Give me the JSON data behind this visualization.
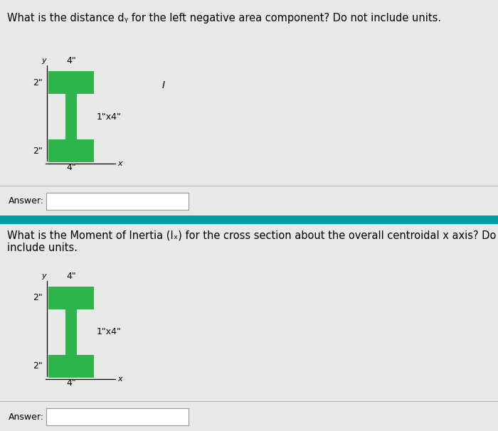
{
  "bg_top": "#e0e0e0",
  "bg_bot": "#e0e0e0",
  "divider_color": "#00a0a0",
  "section1": {
    "question": "What is the distance dᵧ for the left negative area component? Do not include units.",
    "green": "#2db54b",
    "white_bg": "#f0f0f0",
    "answer_label": "Answer:"
  },
  "section2": {
    "question_line1": "What is the Moment of Inertia (Iₓ) for the cross section about the overall centroidal x axis? Do not",
    "question_line2": "include units.",
    "green": "#2db54b",
    "white_bg": "#f0f0f0",
    "answer_label": "Answer:"
  }
}
